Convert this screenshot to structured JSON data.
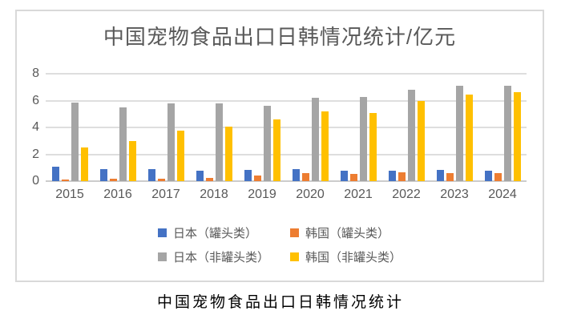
{
  "chart_data": {
    "type": "bar",
    "title": "中国宠物食品出口日韩情况统计/亿元",
    "caption": "中国宠物食品出口日韩情况统计",
    "categories": [
      "2015",
      "2016",
      "2017",
      "2018",
      "2019",
      "2020",
      "2021",
      "2022",
      "2023",
      "2024"
    ],
    "series": [
      {
        "name": "日本（罐头类）",
        "color": "#4472C4",
        "values": [
          1.1,
          0.9,
          0.9,
          0.8,
          0.85,
          0.9,
          0.8,
          0.75,
          0.85,
          0.8
        ]
      },
      {
        "name": "韩国（罐头类）",
        "color": "#ED7D31",
        "values": [
          0.1,
          0.2,
          0.2,
          0.25,
          0.4,
          0.6,
          0.55,
          0.65,
          0.6,
          0.6
        ]
      },
      {
        "name": "日本（非罐头类）",
        "color": "#A5A5A5",
        "values": [
          5.85,
          5.5,
          5.8,
          5.8,
          5.6,
          6.2,
          6.25,
          6.8,
          7.1,
          7.1
        ]
      },
      {
        "name": "韩国（非罐头类）",
        "color": "#FFC000",
        "values": [
          2.5,
          3.0,
          3.75,
          4.05,
          4.6,
          5.2,
          5.1,
          6.0,
          6.45,
          6.65
        ]
      }
    ],
    "y_ticks": [
      0,
      2,
      4,
      6,
      8
    ],
    "ylim": [
      0,
      8
    ],
    "xlabel": "",
    "ylabel": "",
    "grid": true,
    "legend_position": "bottom",
    "colors": {
      "title_text": "#595959",
      "axis_text": "#595959",
      "legend_text": "#595959",
      "gridline": "#dedede",
      "chart_border": "#d9d9d9",
      "caption_text": "#000000"
    }
  }
}
